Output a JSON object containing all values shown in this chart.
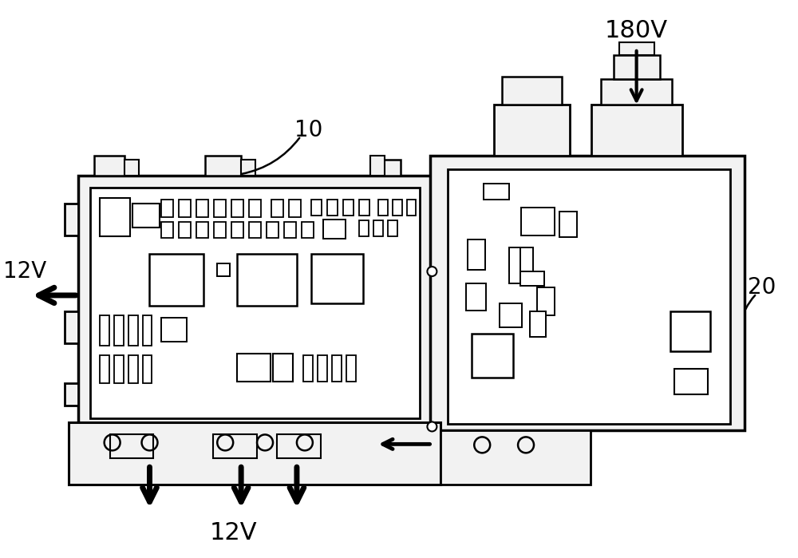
{
  "bg_color": "#f2f2f2",
  "pcb_color": "#ffffff",
  "line_color": "#000000",
  "label_10": "10",
  "label_20": "20",
  "label_180V": "180V",
  "label_12V_left": "12V",
  "label_12V_bottom": "12V"
}
